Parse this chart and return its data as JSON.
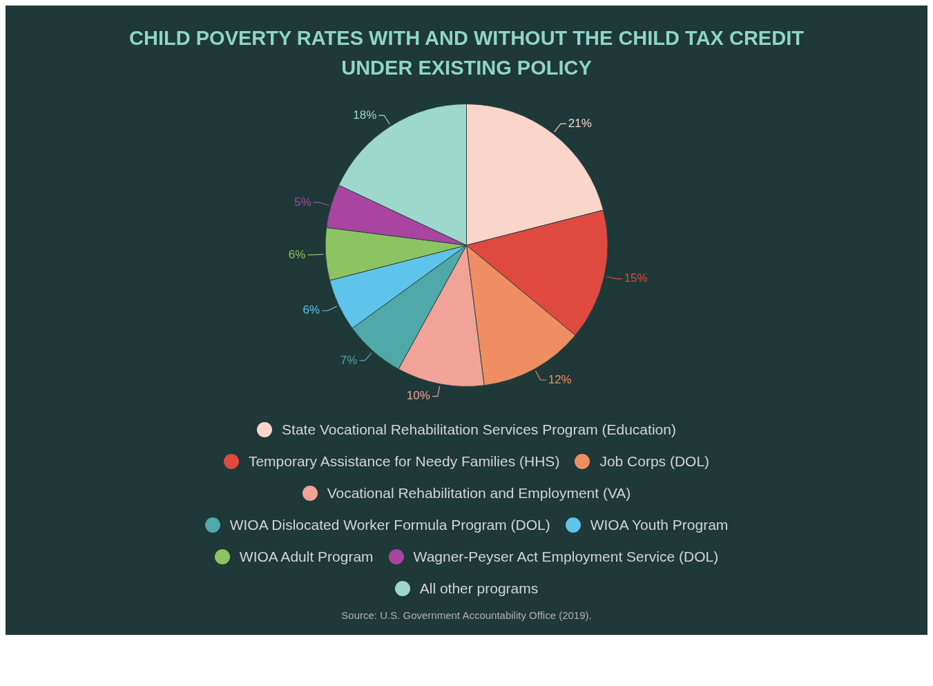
{
  "chart_data": {
    "type": "pie",
    "title": "CHILD POVERTY RATES WITH AND WITHOUT THE CHILD TAX CREDIT UNDER EXISTING POLICY",
    "categories": [
      "State Vocational Rehabilitation Services Program (Education)",
      "Temporary Assistance for Needy Families (HHS)",
      "Job Corps (DOL)",
      "Vocational Rehabilitation and Employment (VA)",
      "WIOA Dislocated Worker Formula Program (DOL)",
      "WIOA Youth Program",
      "WIOA Adult Program",
      "Wagner-Peyser Act Employment Service (DOL)",
      "All other programs"
    ],
    "values": [
      21,
      15,
      12,
      10,
      7,
      6,
      6,
      5,
      18
    ],
    "value_labels": [
      "21%",
      "15%",
      "12%",
      "10%",
      "7%",
      "6%",
      "6%",
      "5%",
      "18%"
    ],
    "colors": [
      "#f9d5ca",
      "#e0493f",
      "#f08e63",
      "#f0a396",
      "#4fa9a8",
      "#5ec4ea",
      "#8dc462",
      "#a944a0",
      "#9ed7cc"
    ],
    "legend": "bottom",
    "annotations": [
      "Source: U.S. Government Accountability Office (2019)."
    ]
  }
}
